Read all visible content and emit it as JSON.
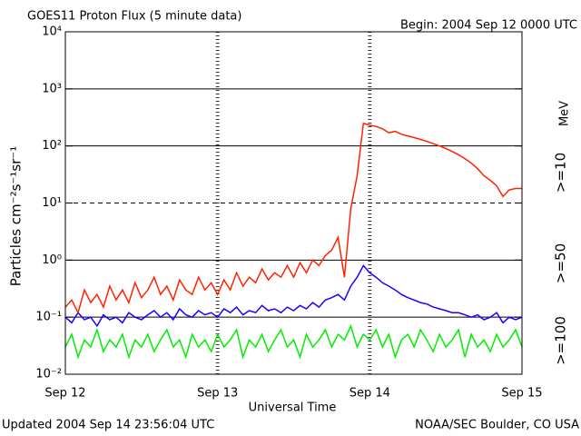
{
  "chart_data": {
    "type": "line",
    "title": "GOES11 Proton Flux (5 minute data)",
    "subtitle": "Begin: 2004 Sep 12 0000 UTC",
    "y_label": "Particles cm⁻²s⁻¹sr⁻¹",
    "x_label": "Universal Time",
    "unit_label": "MeV",
    "footer_left": "Updated 2004 Sep 14 23:56:04 UTC",
    "footer_right": "NOAA/SEC Boulder, CO USA",
    "log_y": true,
    "xlim": [
      0,
      72
    ],
    "xticks": [
      {
        "value": 0,
        "label": "Sep 12"
      },
      {
        "value": 24,
        "label": "Sep 13"
      },
      {
        "value": 48,
        "label": "Sep 14"
      },
      {
        "value": 72,
        "label": "Sep 15"
      }
    ],
    "ylim": [
      0.01,
      10000
    ],
    "yticks": [
      {
        "value": 0.01,
        "label": "10⁻²"
      },
      {
        "value": 0.1,
        "label": "10⁻¹"
      },
      {
        "value": 1,
        "label": "10⁰"
      },
      {
        "value": 10,
        "label": "10¹"
      },
      {
        "value": 100,
        "label": "10²"
      },
      {
        "value": 1000,
        "label": "10³"
      },
      {
        "value": 10000,
        "label": "10⁴"
      }
    ],
    "grid_lines": [
      {
        "value": 1000,
        "style": "solid"
      },
      {
        "value": 100,
        "style": "solid"
      },
      {
        "value": 10,
        "style": "dashed"
      },
      {
        "value": 1,
        "style": "solid"
      },
      {
        "value": 0.1,
        "style": "solid"
      }
    ],
    "x": [
      0,
      1,
      2,
      3,
      4,
      5,
      6,
      7,
      8,
      9,
      10,
      11,
      12,
      13,
      14,
      15,
      16,
      17,
      18,
      19,
      20,
      21,
      22,
      23,
      24,
      25,
      26,
      27,
      28,
      29,
      30,
      31,
      32,
      33,
      34,
      35,
      36,
      37,
      38,
      39,
      40,
      41,
      42,
      43,
      44,
      45,
      46,
      47,
      48,
      49,
      50,
      51,
      52,
      53,
      54,
      55,
      56,
      57,
      58,
      59,
      60,
      61,
      62,
      63,
      64,
      65,
      66,
      67,
      68,
      69,
      70,
      71,
      72
    ],
    "series": [
      {
        "name": ">=10",
        "color": "#ff2200",
        "values": [
          0.15,
          0.2,
          0.12,
          0.3,
          0.18,
          0.25,
          0.15,
          0.35,
          0.2,
          0.3,
          0.18,
          0.4,
          0.22,
          0.3,
          0.5,
          0.25,
          0.35,
          0.2,
          0.45,
          0.3,
          0.25,
          0.5,
          0.3,
          0.4,
          0.25,
          0.45,
          0.3,
          0.6,
          0.35,
          0.5,
          0.4,
          0.7,
          0.45,
          0.6,
          0.5,
          0.8,
          0.5,
          0.9,
          0.6,
          1.0,
          0.8,
          1.2,
          1.5,
          2.5,
          0.5,
          8,
          30,
          250,
          230,
          220,
          200,
          170,
          180,
          160,
          150,
          140,
          130,
          120,
          110,
          100,
          90,
          80,
          70,
          60,
          50,
          40,
          30,
          25,
          20,
          13,
          17,
          18,
          18
        ]
      },
      {
        "name": ">=50",
        "color": "#1a00ff",
        "values": [
          0.1,
          0.08,
          0.12,
          0.09,
          0.1,
          0.07,
          0.11,
          0.09,
          0.1,
          0.08,
          0.12,
          0.1,
          0.09,
          0.11,
          0.13,
          0.1,
          0.12,
          0.09,
          0.14,
          0.11,
          0.1,
          0.13,
          0.11,
          0.12,
          0.1,
          0.14,
          0.12,
          0.15,
          0.11,
          0.13,
          0.12,
          0.16,
          0.13,
          0.14,
          0.12,
          0.15,
          0.13,
          0.16,
          0.14,
          0.18,
          0.15,
          0.2,
          0.22,
          0.25,
          0.2,
          0.35,
          0.5,
          0.8,
          0.6,
          0.5,
          0.4,
          0.35,
          0.3,
          0.25,
          0.22,
          0.2,
          0.18,
          0.17,
          0.15,
          0.14,
          0.13,
          0.12,
          0.12,
          0.11,
          0.1,
          0.11,
          0.09,
          0.1,
          0.12,
          0.08,
          0.1,
          0.09,
          0.1
        ]
      },
      {
        "name": ">=100",
        "color": "#00ee00",
        "values": [
          0.03,
          0.05,
          0.02,
          0.04,
          0.03,
          0.06,
          0.025,
          0.04,
          0.03,
          0.05,
          0.02,
          0.04,
          0.03,
          0.05,
          0.025,
          0.04,
          0.06,
          0.03,
          0.04,
          0.02,
          0.05,
          0.03,
          0.04,
          0.025,
          0.05,
          0.03,
          0.04,
          0.06,
          0.02,
          0.04,
          0.03,
          0.05,
          0.025,
          0.04,
          0.06,
          0.03,
          0.04,
          0.02,
          0.05,
          0.03,
          0.04,
          0.06,
          0.03,
          0.05,
          0.04,
          0.07,
          0.03,
          0.05,
          0.04,
          0.06,
          0.03,
          0.05,
          0.02,
          0.04,
          0.05,
          0.03,
          0.06,
          0.04,
          0.025,
          0.05,
          0.03,
          0.04,
          0.06,
          0.02,
          0.05,
          0.03,
          0.04,
          0.025,
          0.05,
          0.03,
          0.04,
          0.06,
          0.03
        ]
      }
    ]
  }
}
